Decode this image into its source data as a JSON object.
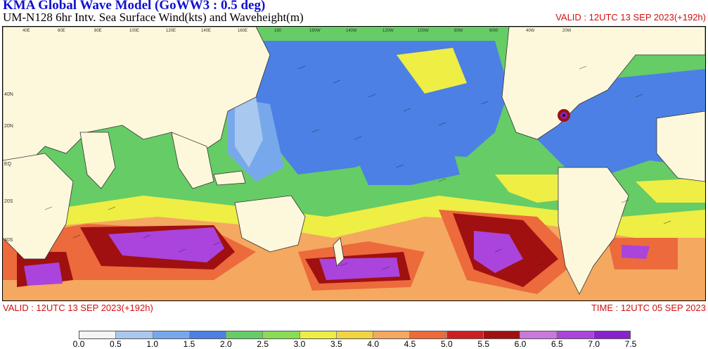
{
  "header": {
    "title": "KMA  Global Wave Model (GoWW3 : 0.5 deg)",
    "subtitle": "UM-N128  6hr Intv. Sea Surface Wind(kts) and Waveheight(m)",
    "valid_top": "VALID : 12UTC 13 SEP 2023(+192h)"
  },
  "footer": {
    "valid": "VALID : 12UTC 13 SEP 2023(+192h)",
    "time": "TIME : 12UTC 05 SEP 2023"
  },
  "colorbar": {
    "ticks": [
      "0.0",
      "0.5",
      "1.0",
      "1.5",
      "2.0",
      "2.5",
      "3.0",
      "3.5",
      "4.0",
      "4.5",
      "5.0",
      "5.5",
      "6.0",
      "6.5",
      "7.0",
      "7.5"
    ],
    "colors": [
      "#f4f4f4",
      "#a8c8f0",
      "#78a8ec",
      "#4c80e4",
      "#66cc66",
      "#88dd55",
      "#eeee44",
      "#f2d440",
      "#f4a860",
      "#ec6a3c",
      "#cc2020",
      "#a01010",
      "#cc77dd",
      "#aa44dd",
      "#8822cc"
    ]
  },
  "map": {
    "land_color": "#fdf8dc",
    "lat_labels": [
      "40N",
      "20N",
      "EQ",
      "20S",
      "40S"
    ],
    "lon_labels": [
      "40E",
      "60E",
      "80E",
      "100E",
      "120E",
      "140E",
      "160E",
      "180",
      "160W",
      "140W",
      "120W",
      "100W",
      "80W",
      "60W",
      "40W",
      "20W"
    ]
  }
}
